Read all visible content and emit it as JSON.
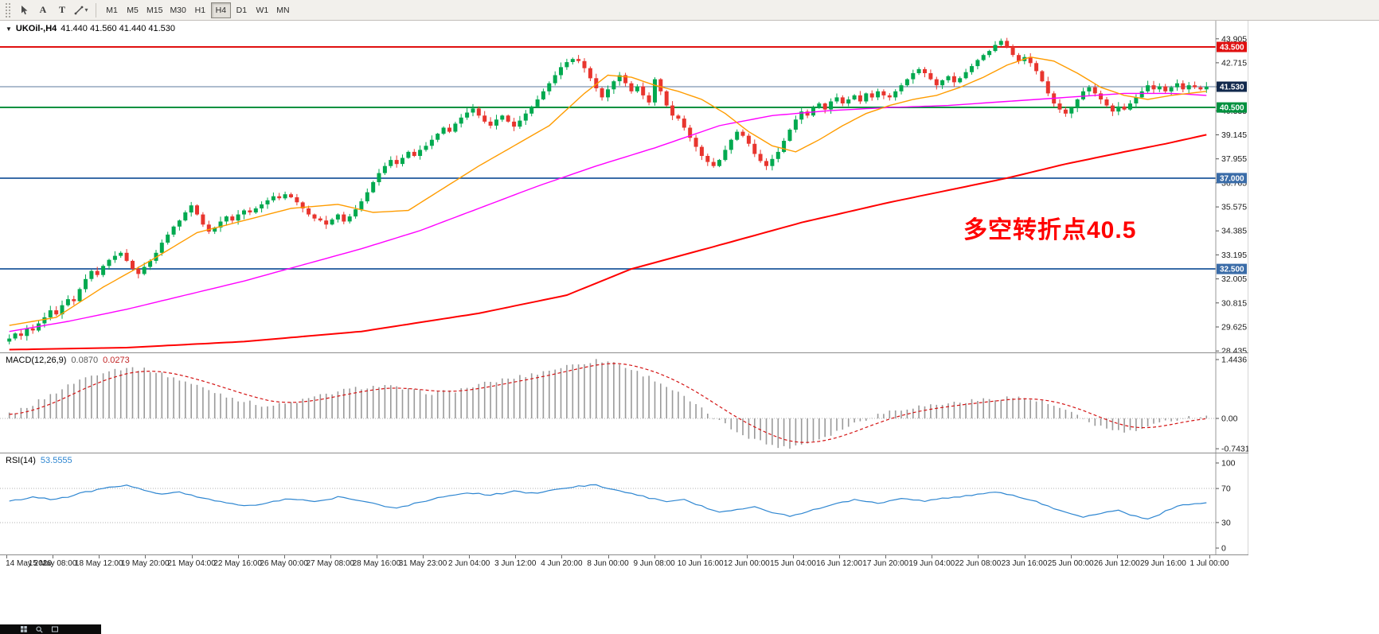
{
  "icons": {
    "title_marker": "▼",
    "caret": "▾"
  },
  "toolbar": {
    "tool_buttons": [
      {
        "name": "pointer"
      },
      {
        "name": "text-label",
        "label": "A"
      },
      {
        "name": "type-tool",
        "label": "T"
      },
      {
        "name": "shapes"
      }
    ],
    "timeframes": [
      "M1",
      "M5",
      "M15",
      "M30",
      "H1",
      "H4",
      "D1",
      "W1",
      "MN"
    ],
    "active_timeframe": "H4"
  },
  "chart_header": {
    "symbol": "UKOil-,H4",
    "ohlc": "41.440 41.560 41.440 41.530"
  },
  "annotation": {
    "text": "多空转折点40.5",
    "color": "#ff0000"
  },
  "indicators": {
    "macd": {
      "name": "MACD(12,26,9)",
      "value1": "0.0870",
      "value2": "0.0273"
    },
    "rsi": {
      "name": "RSI(14)",
      "value": "53.5555"
    }
  },
  "taskbar": {
    "icons": [
      "start",
      "search",
      "app"
    ]
  },
  "chart_data": {
    "type": "candlestick",
    "symbol": "UKOil-",
    "timeframe": "H4",
    "title": "UKOil-,H4 41.440 41.560 41.440 41.530",
    "y_range": [
      28.6,
      44.25
    ],
    "price_axis_ticks": [
      43.905,
      42.715,
      41.525,
      40.335,
      39.145,
      37.955,
      36.765,
      35.575,
      34.385,
      33.195,
      32.005,
      30.815,
      29.625,
      28.435
    ],
    "price_badges": [
      {
        "price": 43.5,
        "label": "43.500",
        "color": "#e01010"
      },
      {
        "price": 41.53,
        "label": "41.530",
        "color": "#12294d"
      },
      {
        "price": 40.5,
        "label": "40.500",
        "color": "#00913f"
      },
      {
        "price": 37.0,
        "label": "37.000",
        "color": "#3a6ca8"
      },
      {
        "price": 32.5,
        "label": "32.500",
        "color": "#3a6ca8"
      }
    ],
    "hlines": [
      {
        "price": 43.5,
        "color": "#e01010",
        "width": 2
      },
      {
        "price": 40.5,
        "color": "#00913f",
        "width": 2
      },
      {
        "price": 37.0,
        "color": "#3a6ca8",
        "width": 2
      },
      {
        "price": 32.5,
        "color": "#3a6ca8",
        "width": 2
      }
    ],
    "current_price": {
      "value": 41.53,
      "line_color": "#5b7a9d"
    },
    "candles": {
      "up_color": "#00a94f",
      "down_color": "#e8352e",
      "first_open": 28.9,
      "closes": [
        29.05,
        29.3,
        29.18,
        29.55,
        29.45,
        29.8,
        30.1,
        30.45,
        30.25,
        30.7,
        31.0,
        30.9,
        31.5,
        32.0,
        32.4,
        32.2,
        32.65,
        32.95,
        33.15,
        33.3,
        32.9,
        32.5,
        32.25,
        32.6,
        32.9,
        33.3,
        33.8,
        34.2,
        34.6,
        34.9,
        35.3,
        35.65,
        35.2,
        34.7,
        34.35,
        34.55,
        34.85,
        35.1,
        34.9,
        35.2,
        35.4,
        35.3,
        35.5,
        35.7,
        35.9,
        36.1,
        36.0,
        36.2,
        36.05,
        35.8,
        35.5,
        35.2,
        35.0,
        34.9,
        34.7,
        34.95,
        35.2,
        34.85,
        35.1,
        35.45,
        35.85,
        36.3,
        36.8,
        37.25,
        37.6,
        37.9,
        37.7,
        38.0,
        38.3,
        38.1,
        38.4,
        38.6,
        38.9,
        39.2,
        39.5,
        39.3,
        39.7,
        40.0,
        40.25,
        40.45,
        40.1,
        39.8,
        39.6,
        39.9,
        40.1,
        39.8,
        39.55,
        39.85,
        40.2,
        40.55,
        40.9,
        41.3,
        41.7,
        42.1,
        42.5,
        42.75,
        42.9,
        42.8,
        42.45,
        41.95,
        41.45,
        41.0,
        41.4,
        41.8,
        42.1,
        41.7,
        41.3,
        41.55,
        41.1,
        40.75,
        41.9,
        41.3,
        40.6,
        40.1,
        39.95,
        39.5,
        39.0,
        38.55,
        38.1,
        37.8,
        37.6,
        37.9,
        38.4,
        38.9,
        39.3,
        39.1,
        38.7,
        38.2,
        37.85,
        37.6,
        37.95,
        38.3,
        38.85,
        39.4,
        39.9,
        40.3,
        40.1,
        40.5,
        40.7,
        40.4,
        40.8,
        41.0,
        40.7,
        40.9,
        41.1,
        40.8,
        41.2,
        41.0,
        41.3,
        41.1,
        41.0,
        41.3,
        41.6,
        41.9,
        42.2,
        42.4,
        42.2,
        41.9,
        41.6,
        41.85,
        42.05,
        41.75,
        41.95,
        42.25,
        42.55,
        42.85,
        43.1,
        43.3,
        43.6,
        43.8,
        43.5,
        43.1,
        42.8,
        43.0,
        42.7,
        42.3,
        41.8,
        41.2,
        40.7,
        40.4,
        40.2,
        40.5,
        40.9,
        41.3,
        41.5,
        41.2,
        40.9,
        40.6,
        40.3,
        40.55,
        40.4,
        40.7,
        41.0,
        41.3,
        41.6,
        41.4,
        41.55,
        41.3,
        41.5,
        41.7,
        41.4,
        41.6,
        41.5,
        41.4,
        41.53
      ]
    },
    "overlays": {
      "ma_fast": {
        "color": "#ff9c00",
        "points": [
          [
            0,
            29.7
          ],
          [
            8,
            30.1
          ],
          [
            16,
            31.6
          ],
          [
            24,
            32.9
          ],
          [
            32,
            34.3
          ],
          [
            40,
            34.9
          ],
          [
            48,
            35.5
          ],
          [
            56,
            35.7
          ],
          [
            62,
            35.3
          ],
          [
            68,
            35.4
          ],
          [
            74,
            36.5
          ],
          [
            80,
            37.6
          ],
          [
            86,
            38.6
          ],
          [
            92,
            39.6
          ],
          [
            98,
            41.2
          ],
          [
            102,
            42.1
          ],
          [
            106,
            42.0
          ],
          [
            110,
            41.6
          ],
          [
            114,
            41.3
          ],
          [
            118,
            40.9
          ],
          [
            122,
            40.2
          ],
          [
            126,
            39.3
          ],
          [
            130,
            38.6
          ],
          [
            134,
            38.3
          ],
          [
            138,
            38.9
          ],
          [
            142,
            39.6
          ],
          [
            146,
            40.2
          ],
          [
            150,
            40.6
          ],
          [
            154,
            40.9
          ],
          [
            158,
            41.1
          ],
          [
            162,
            41.5
          ],
          [
            166,
            42.0
          ],
          [
            170,
            42.6
          ],
          [
            174,
            43.0
          ],
          [
            178,
            42.8
          ],
          [
            182,
            42.2
          ],
          [
            186,
            41.5
          ],
          [
            190,
            41.1
          ],
          [
            194,
            40.9
          ],
          [
            198,
            41.1
          ],
          [
            204,
            41.3
          ]
        ]
      },
      "ma_mid": {
        "color": "#ff00ff",
        "points": [
          [
            0,
            29.4
          ],
          [
            10,
            29.9
          ],
          [
            20,
            30.5
          ],
          [
            30,
            31.2
          ],
          [
            40,
            31.9
          ],
          [
            50,
            32.7
          ],
          [
            60,
            33.5
          ],
          [
            70,
            34.4
          ],
          [
            80,
            35.5
          ],
          [
            90,
            36.6
          ],
          [
            100,
            37.6
          ],
          [
            110,
            38.5
          ],
          [
            121,
            39.6
          ],
          [
            130,
            40.1
          ],
          [
            140,
            40.35
          ],
          [
            150,
            40.5
          ],
          [
            160,
            40.6
          ],
          [
            170,
            40.8
          ],
          [
            180,
            41.0
          ],
          [
            190,
            41.2
          ],
          [
            198,
            41.2
          ],
          [
            204,
            41.1
          ]
        ]
      },
      "ma_slow": {
        "color": "#ff0000",
        "points": [
          [
            0,
            28.5
          ],
          [
            20,
            28.6
          ],
          [
            40,
            28.9
          ],
          [
            60,
            29.4
          ],
          [
            80,
            30.3
          ],
          [
            95,
            31.2
          ],
          [
            106,
            32.5
          ],
          [
            120,
            33.6
          ],
          [
            135,
            34.8
          ],
          [
            150,
            35.8
          ],
          [
            160,
            36.4
          ],
          [
            170,
            37.0
          ],
          [
            180,
            37.7
          ],
          [
            190,
            38.3
          ],
          [
            197,
            38.7
          ],
          [
            204,
            39.15
          ]
        ]
      }
    },
    "macd": {
      "hist_color": "#9a9a9a",
      "signal_color": "#d41414",
      "axis_ticks": [
        {
          "v": 1.4436,
          "label": "1.4436"
        },
        {
          "v": 0,
          "label": "0.00"
        },
        {
          "v": -0.7431,
          "label": "-0.7431"
        }
      ],
      "points": [
        [
          0,
          0.1
        ],
        [
          4,
          0.35
        ],
        [
          8,
          0.65
        ],
        [
          12,
          0.95
        ],
        [
          16,
          1.15
        ],
        [
          20,
          1.25
        ],
        [
          24,
          1.18
        ],
        [
          28,
          1.0
        ],
        [
          32,
          0.8
        ],
        [
          36,
          0.6
        ],
        [
          40,
          0.42
        ],
        [
          44,
          0.3
        ],
        [
          48,
          0.38
        ],
        [
          52,
          0.52
        ],
        [
          56,
          0.66
        ],
        [
          60,
          0.76
        ],
        [
          64,
          0.8
        ],
        [
          68,
          0.7
        ],
        [
          72,
          0.62
        ],
        [
          76,
          0.68
        ],
        [
          80,
          0.82
        ],
        [
          84,
          0.95
        ],
        [
          88,
          1.05
        ],
        [
          92,
          1.18
        ],
        [
          96,
          1.32
        ],
        [
          100,
          1.42
        ],
        [
          103,
          1.38
        ],
        [
          106,
          1.2
        ],
        [
          110,
          0.95
        ],
        [
          114,
          0.62
        ],
        [
          117,
          0.32
        ],
        [
          120,
          0.02
        ],
        [
          123,
          -0.25
        ],
        [
          126,
          -0.45
        ],
        [
          129,
          -0.62
        ],
        [
          132,
          -0.72
        ],
        [
          135,
          -0.64
        ],
        [
          138,
          -0.5
        ],
        [
          141,
          -0.32
        ],
        [
          144,
          -0.12
        ],
        [
          147,
          0.05
        ],
        [
          150,
          0.18
        ],
        [
          154,
          0.28
        ],
        [
          158,
          0.34
        ],
        [
          162,
          0.4
        ],
        [
          166,
          0.46
        ],
        [
          170,
          0.52
        ],
        [
          173,
          0.5
        ],
        [
          176,
          0.4
        ],
        [
          179,
          0.25
        ],
        [
          182,
          0.05
        ],
        [
          185,
          -0.15
        ],
        [
          188,
          -0.3
        ],
        [
          191,
          -0.33
        ],
        [
          194,
          -0.22
        ],
        [
          197,
          -0.08
        ],
        [
          200,
          0.02
        ],
        [
          204,
          0.07
        ]
      ]
    },
    "rsi": {
      "line_color": "#2e86d1",
      "levels": [
        70,
        30
      ],
      "current": 53.5555,
      "axis_ticks": [
        {
          "v": 100,
          "label": "100"
        },
        {
          "v": 70,
          "label": "70"
        },
        {
          "v": 30,
          "label": "30"
        },
        {
          "v": 0,
          "label": "0"
        }
      ],
      "points": [
        [
          0,
          55
        ],
        [
          4,
          60
        ],
        [
          8,
          57
        ],
        [
          12,
          64
        ],
        [
          16,
          70
        ],
        [
          20,
          74
        ],
        [
          23,
          68
        ],
        [
          26,
          63
        ],
        [
          29,
          66
        ],
        [
          32,
          60
        ],
        [
          36,
          55
        ],
        [
          40,
          49
        ],
        [
          44,
          53
        ],
        [
          48,
          58
        ],
        [
          52,
          54
        ],
        [
          56,
          60
        ],
        [
          60,
          56
        ],
        [
          63,
          51
        ],
        [
          66,
          47
        ],
        [
          70,
          54
        ],
        [
          74,
          60
        ],
        [
          78,
          65
        ],
        [
          82,
          62
        ],
        [
          86,
          67
        ],
        [
          90,
          64
        ],
        [
          93,
          69
        ],
        [
          96,
          72
        ],
        [
          100,
          74
        ],
        [
          103,
          69
        ],
        [
          106,
          64
        ],
        [
          109,
          59
        ],
        [
          112,
          54
        ],
        [
          115,
          57
        ],
        [
          118,
          49
        ],
        [
          121,
          42
        ],
        [
          124,
          45
        ],
        [
          127,
          49
        ],
        [
          130,
          42
        ],
        [
          133,
          37
        ],
        [
          136,
          43
        ],
        [
          140,
          51
        ],
        [
          144,
          57
        ],
        [
          148,
          53
        ],
        [
          152,
          58
        ],
        [
          156,
          55
        ],
        [
          160,
          59
        ],
        [
          164,
          62
        ],
        [
          168,
          66
        ],
        [
          171,
          62
        ],
        [
          174,
          57
        ],
        [
          177,
          49
        ],
        [
          180,
          42
        ],
        [
          183,
          36
        ],
        [
          186,
          41
        ],
        [
          189,
          45
        ],
        [
          191,
          39
        ],
        [
          194,
          34
        ],
        [
          197,
          43
        ],
        [
          200,
          51
        ],
        [
          204,
          53.6
        ]
      ]
    },
    "time_labels": [
      "14 May 2020",
      "15 May 08:00",
      "18 May 12:00",
      "19 May 20:00",
      "21 May 04:00",
      "22 May 16:00",
      "26 May 00:00",
      "27 May 08:00",
      "28 May 16:00",
      "31 May 23:00",
      "2 Jun 04:00",
      "3 Jun 12:00",
      "4 Jun 20:00",
      "8 Jun 00:00",
      "9 Jun 08:00",
      "10 Jun 16:00",
      "12 Jun 00:00",
      "15 Jun 04:00",
      "16 Jun 12:00",
      "17 Jun 20:00",
      "19 Jun 04:00",
      "22 Jun 08:00",
      "23 Jun 16:00",
      "25 Jun 00:00",
      "26 Jun 12:00",
      "29 Jun 16:00",
      "1 Jul 00:00"
    ]
  }
}
